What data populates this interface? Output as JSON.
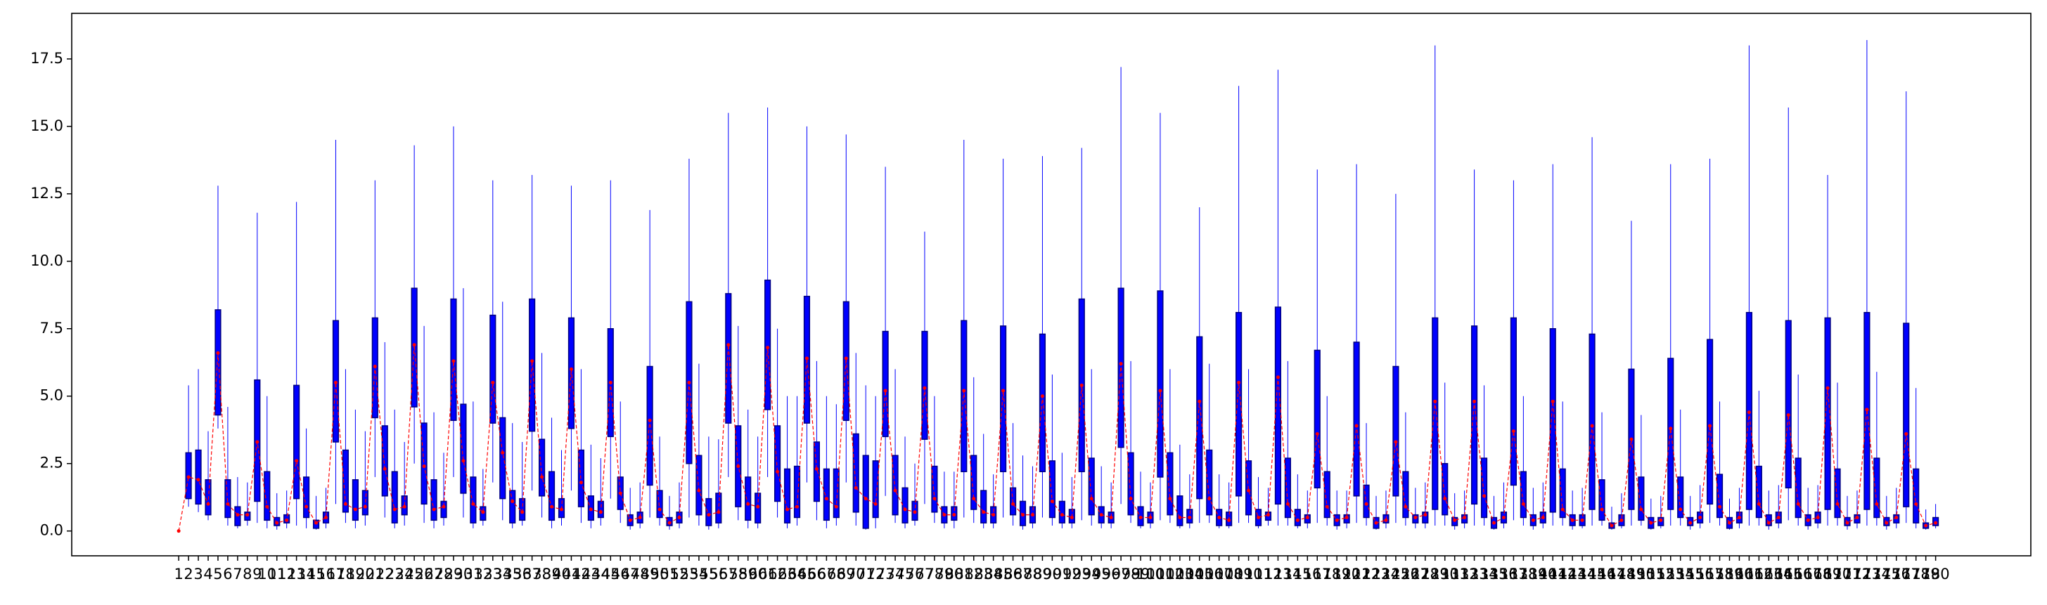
{
  "chart_data": {
    "type": "boxplot",
    "x": [
      1,
      2,
      3,
      4,
      5,
      6,
      7,
      8,
      9,
      10,
      11,
      12,
      13,
      14,
      15,
      16,
      17,
      18,
      19,
      20,
      21,
      22,
      23,
      24,
      25,
      26,
      27,
      28,
      29,
      30,
      31,
      32,
      33,
      34,
      35,
      36,
      37,
      38,
      39,
      40,
      41,
      42,
      43,
      44,
      45,
      46,
      47,
      48,
      49,
      50,
      51,
      52,
      53,
      54,
      55,
      56,
      57,
      58,
      59,
      60,
      61,
      62,
      63,
      64,
      65,
      66,
      67,
      68,
      69,
      70,
      71,
      72,
      73,
      74,
      75,
      76,
      77,
      78,
      79,
      80,
      81,
      82,
      83,
      84,
      85,
      86,
      87,
      88,
      89,
      90,
      91,
      92,
      93,
      94,
      95,
      96,
      97,
      98,
      99,
      100,
      101,
      102,
      103,
      104,
      105,
      106,
      107,
      108,
      109,
      110,
      111,
      112,
      113,
      114,
      115,
      116,
      117,
      118,
      119,
      120,
      121,
      122,
      123,
      124,
      125,
      126,
      127,
      128,
      129,
      130,
      131,
      132,
      133,
      134,
      135,
      136,
      137,
      138,
      139,
      140,
      141,
      142,
      143,
      144,
      145,
      146,
      147,
      148,
      149,
      150,
      151,
      152,
      153,
      154,
      155,
      156,
      157,
      158,
      159,
      160,
      161,
      162,
      163,
      164,
      165,
      166,
      167,
      168,
      169,
      170,
      171,
      172,
      173,
      174,
      175,
      176,
      177,
      178,
      179,
      180
    ],
    "boxes": [
      [
        0,
        0,
        0,
        0,
        0
      ],
      [
        0.9,
        1.2,
        2.0,
        2.9,
        5.4
      ],
      [
        0.7,
        1.0,
        1.9,
        3.0,
        6.0
      ],
      [
        0.4,
        0.6,
        1.0,
        1.9,
        3.7
      ],
      [
        3.8,
        4.3,
        6.6,
        8.2,
        12.8
      ],
      [
        0.2,
        0.5,
        1.0,
        1.9,
        4.6
      ],
      [
        0.1,
        0.2,
        0.6,
        0.9,
        2.0
      ],
      [
        0.2,
        0.4,
        0.6,
        0.7,
        1.8
      ],
      [
        0.3,
        1.1,
        3.3,
        5.6,
        11.8
      ],
      [
        0.1,
        0.4,
        0.9,
        2.2,
        5.0
      ],
      [
        0.05,
        0.2,
        0.3,
        0.5,
        1.4
      ],
      [
        0.1,
        0.3,
        0.4,
        0.6,
        1.5
      ],
      [
        0.2,
        1.2,
        2.6,
        5.4,
        12.2
      ],
      [
        0.1,
        0.5,
        0.9,
        2.0,
        3.8
      ],
      [
        0.05,
        0.1,
        0.3,
        0.4,
        1.3
      ],
      [
        0.1,
        0.3,
        0.5,
        0.7,
        1.6
      ],
      [
        1.0,
        3.3,
        5.5,
        7.8,
        14.5
      ],
      [
        0.3,
        0.7,
        1.0,
        3.0,
        6.0
      ],
      [
        0.1,
        0.4,
        0.8,
        1.9,
        4.5
      ],
      [
        0.2,
        0.6,
        0.9,
        1.5,
        3.7
      ],
      [
        2.0,
        4.2,
        6.1,
        7.9,
        13.0
      ],
      [
        0.5,
        1.3,
        2.3,
        3.9,
        7.0
      ],
      [
        0.1,
        0.3,
        0.8,
        2.2,
        4.5
      ],
      [
        0.2,
        0.6,
        0.9,
        1.3,
        3.3
      ],
      [
        2.5,
        4.6,
        6.9,
        9.0,
        14.3
      ],
      [
        0.3,
        1.0,
        2.4,
        4.0,
        7.6
      ],
      [
        0.1,
        0.4,
        0.8,
        1.9,
        4.4
      ],
      [
        0.2,
        0.5,
        0.9,
        1.1,
        2.9
      ],
      [
        2.0,
        4.1,
        6.3,
        8.6,
        15.0
      ],
      [
        0.5,
        1.4,
        2.6,
        4.7,
        9.0
      ],
      [
        0.1,
        0.3,
        1.0,
        2.0,
        4.8
      ],
      [
        0.2,
        0.4,
        0.7,
        0.9,
        2.3
      ],
      [
        1.8,
        4.0,
        5.5,
        8.0,
        13.0
      ],
      [
        0.4,
        1.2,
        2.9,
        4.2,
        8.5
      ],
      [
        0.1,
        0.3,
        1.1,
        1.5,
        4.0
      ],
      [
        0.2,
        0.4,
        0.7,
        1.2,
        3.3
      ],
      [
        1.5,
        3.7,
        6.3,
        8.6,
        13.2
      ],
      [
        0.5,
        1.3,
        2.0,
        3.4,
        6.6
      ],
      [
        0.1,
        0.4,
        0.9,
        2.2,
        4.2
      ],
      [
        0.2,
        0.5,
        0.8,
        1.2,
        3.0
      ],
      [
        1.5,
        3.8,
        6.0,
        7.9,
        12.8
      ],
      [
        0.3,
        0.9,
        1.8,
        3.0,
        6.0
      ],
      [
        0.1,
        0.4,
        0.8,
        1.3,
        3.2
      ],
      [
        0.2,
        0.5,
        0.7,
        1.1,
        2.7
      ],
      [
        1.2,
        3.5,
        5.5,
        7.5,
        13.0
      ],
      [
        0.3,
        0.8,
        1.4,
        2.0,
        4.8
      ],
      [
        0.05,
        0.2,
        0.4,
        0.6,
        1.6
      ],
      [
        0.1,
        0.3,
        0.5,
        0.7,
        1.8
      ],
      [
        0.5,
        1.7,
        4.1,
        6.1,
        11.9
      ],
      [
        0.2,
        0.5,
        0.8,
        1.5,
        3.5
      ],
      [
        0.05,
        0.2,
        0.3,
        0.5,
        1.3
      ],
      [
        0.1,
        0.3,
        0.5,
        0.7,
        1.8
      ],
      [
        0.5,
        2.5,
        5.5,
        8.5,
        13.8
      ],
      [
        0.2,
        0.6,
        1.5,
        2.8,
        6.2
      ],
      [
        0.05,
        0.2,
        0.6,
        1.2,
        3.5
      ],
      [
        0.1,
        0.3,
        0.7,
        1.4,
        3.4
      ],
      [
        2.0,
        4.0,
        6.9,
        8.8,
        15.5
      ],
      [
        0.4,
        0.9,
        2.4,
        3.9,
        7.6
      ],
      [
        0.1,
        0.4,
        1.0,
        2.0,
        4.5
      ],
      [
        0.1,
        0.3,
        0.9,
        1.4,
        3.5
      ],
      [
        2.0,
        4.5,
        6.8,
        9.3,
        15.7
      ],
      [
        0.5,
        1.1,
        2.2,
        3.9,
        7.5
      ],
      [
        0.1,
        0.3,
        0.8,
        2.3,
        5.0
      ],
      [
        0.2,
        0.5,
        0.9,
        2.4,
        5.0
      ],
      [
        1.8,
        4.0,
        6.4,
        8.7,
        15.0
      ],
      [
        0.4,
        1.1,
        2.3,
        3.3,
        6.3
      ],
      [
        0.1,
        0.4,
        1.2,
        2.3,
        5.0
      ],
      [
        0.2,
        0.5,
        0.9,
        2.3,
        4.7
      ],
      [
        1.8,
        4.1,
        6.4,
        8.5,
        14.7
      ],
      [
        0.2,
        0.7,
        1.6,
        3.6,
        6.6
      ],
      [
        0.05,
        0.1,
        1.2,
        2.8,
        5.4
      ],
      [
        0.1,
        0.5,
        1.0,
        2.6,
        5.0
      ],
      [
        1.3,
        3.5,
        5.2,
        7.4,
        13.5
      ],
      [
        0.3,
        0.6,
        1.5,
        2.8,
        6.0
      ],
      [
        0.1,
        0.3,
        0.8,
        1.6,
        3.5
      ],
      [
        0.2,
        0.4,
        0.7,
        1.1,
        2.5
      ],
      [
        1.0,
        3.4,
        5.3,
        7.4,
        11.1
      ],
      [
        0.3,
        0.7,
        1.2,
        2.4,
        5.0
      ],
      [
        0.1,
        0.3,
        0.6,
        0.9,
        2.2
      ],
      [
        0.1,
        0.4,
        0.6,
        0.9,
        2.2
      ],
      [
        0.5,
        2.2,
        5.2,
        7.8,
        14.5
      ],
      [
        0.3,
        0.8,
        1.2,
        2.8,
        5.7
      ],
      [
        0.1,
        0.3,
        0.7,
        1.5,
        3.6
      ],
      [
        0.1,
        0.3,
        0.6,
        0.9,
        2.1
      ],
      [
        0.5,
        2.2,
        5.2,
        7.6,
        13.8
      ],
      [
        0.2,
        0.6,
        1.0,
        1.6,
        4.0
      ],
      [
        0.05,
        0.2,
        0.6,
        1.1,
        2.8
      ],
      [
        0.1,
        0.3,
        0.6,
        0.9,
        2.4
      ],
      [
        0.5,
        2.2,
        5.0,
        7.3,
        13.9
      ],
      [
        0.2,
        0.5,
        1.1,
        2.6,
        5.8
      ],
      [
        0.1,
        0.3,
        0.6,
        1.1,
        2.9
      ],
      [
        0.1,
        0.3,
        0.5,
        0.8,
        2.0
      ],
      [
        0.4,
        2.2,
        5.4,
        8.6,
        14.2
      ],
      [
        0.2,
        0.6,
        1.2,
        2.7,
        6.0
      ],
      [
        0.1,
        0.3,
        0.6,
        0.9,
        2.4
      ],
      [
        0.1,
        0.3,
        0.5,
        0.7,
        1.8
      ],
      [
        1.0,
        3.1,
        6.2,
        9.0,
        17.2
      ],
      [
        0.3,
        0.6,
        1.2,
        2.9,
        6.3
      ],
      [
        0.1,
        0.2,
        0.5,
        0.9,
        2.2
      ],
      [
        0.1,
        0.3,
        0.5,
        0.7,
        1.8
      ],
      [
        0.4,
        2.0,
        5.2,
        8.9,
        15.5
      ],
      [
        0.3,
        0.6,
        1.2,
        2.9,
        6.0
      ],
      [
        0.1,
        0.2,
        0.5,
        1.3,
        3.2
      ],
      [
        0.1,
        0.3,
        0.5,
        0.8,
        2.1
      ],
      [
        0.3,
        1.2,
        4.8,
        7.2,
        12.0
      ],
      [
        0.3,
        0.6,
        1.2,
        3.0,
        6.2
      ],
      [
        0.1,
        0.2,
        0.5,
        0.8,
        2.1
      ],
      [
        0.1,
        0.2,
        0.4,
        0.7,
        1.8
      ],
      [
        0.3,
        1.3,
        5.5,
        8.1,
        16.5
      ],
      [
        0.3,
        0.6,
        1.5,
        2.6,
        6.0
      ],
      [
        0.1,
        0.2,
        0.5,
        0.8,
        2.0
      ],
      [
        0.2,
        0.4,
        0.6,
        0.7,
        1.6
      ],
      [
        0.2,
        1.0,
        5.7,
        8.3,
        17.1
      ],
      [
        0.2,
        0.5,
        1.0,
        2.7,
        6.3
      ],
      [
        0.1,
        0.2,
        0.4,
        0.8,
        2.1
      ],
      [
        0.1,
        0.3,
        0.5,
        0.6,
        1.5
      ],
      [
        0.3,
        1.6,
        3.6,
        6.7,
        13.4
      ],
      [
        0.2,
        0.5,
        0.9,
        2.2,
        5.0
      ],
      [
        0.05,
        0.2,
        0.4,
        0.6,
        1.5
      ],
      [
        0.1,
        0.3,
        0.5,
        0.6,
        1.5
      ],
      [
        0.3,
        1.3,
        3.9,
        7.0,
        13.6
      ],
      [
        0.2,
        0.5,
        1.0,
        1.7,
        4.0
      ],
      [
        0.05,
        0.1,
        0.3,
        0.5,
        1.3
      ],
      [
        0.1,
        0.3,
        0.4,
        0.6,
        1.5
      ],
      [
        0.3,
        1.3,
        3.3,
        6.1,
        12.5
      ],
      [
        0.2,
        0.5,
        0.9,
        2.2,
        4.4
      ],
      [
        0.1,
        0.3,
        0.5,
        0.6,
        1.6
      ],
      [
        0.1,
        0.3,
        0.6,
        0.7,
        1.8
      ],
      [
        0.2,
        0.8,
        4.8,
        7.9,
        18.0
      ],
      [
        0.2,
        0.6,
        1.2,
        2.5,
        5.5
      ],
      [
        0.05,
        0.2,
        0.4,
        0.5,
        1.4
      ],
      [
        0.1,
        0.3,
        0.5,
        0.6,
        1.5
      ],
      [
        0.2,
        1.0,
        4.8,
        7.6,
        13.4
      ],
      [
        0.2,
        0.5,
        1.3,
        2.7,
        5.4
      ],
      [
        0.05,
        0.1,
        0.3,
        0.5,
        1.3
      ],
      [
        0.1,
        0.3,
        0.5,
        0.7,
        1.8
      ],
      [
        0.4,
        1.7,
        3.7,
        7.9,
        13.0
      ],
      [
        0.2,
        0.5,
        1.0,
        2.2,
        5.0
      ],
      [
        0.05,
        0.2,
        0.4,
        0.6,
        1.6
      ],
      [
        0.1,
        0.3,
        0.5,
        0.7,
        1.8
      ],
      [
        0.2,
        0.7,
        4.8,
        7.5,
        13.6
      ],
      [
        0.2,
        0.5,
        0.8,
        2.3,
        4.8
      ],
      [
        0.05,
        0.2,
        0.4,
        0.6,
        1.5
      ],
      [
        0.1,
        0.2,
        0.4,
        0.6,
        1.6
      ],
      [
        0.2,
        0.8,
        3.9,
        7.3,
        14.6
      ],
      [
        0.2,
        0.4,
        0.8,
        1.9,
        4.4
      ],
      [
        0.05,
        0.1,
        0.2,
        0.3,
        0.9
      ],
      [
        0.1,
        0.2,
        0.4,
        0.6,
        1.4
      ],
      [
        0.2,
        0.8,
        3.4,
        6.0,
        11.5
      ],
      [
        0.2,
        0.4,
        0.8,
        2.0,
        4.3
      ],
      [
        0.05,
        0.1,
        0.3,
        0.5,
        1.2
      ],
      [
        0.1,
        0.2,
        0.4,
        0.5,
        1.3
      ],
      [
        0.2,
        0.8,
        3.8,
        6.4,
        13.6
      ],
      [
        0.2,
        0.5,
        0.8,
        2.0,
        4.5
      ],
      [
        0.05,
        0.2,
        0.3,
        0.5,
        1.3
      ],
      [
        0.1,
        0.3,
        0.5,
        0.7,
        1.7
      ],
      [
        0.3,
        1.0,
        3.9,
        7.1,
        13.8
      ],
      [
        0.2,
        0.5,
        0.9,
        2.1,
        4.8
      ],
      [
        0.05,
        0.1,
        0.3,
        0.5,
        1.2
      ],
      [
        0.1,
        0.3,
        0.5,
        0.7,
        1.6
      ],
      [
        0.2,
        0.8,
        4.4,
        8.1,
        18.0
      ],
      [
        0.2,
        0.5,
        1.0,
        2.4,
        5.2
      ],
      [
        0.05,
        0.2,
        0.3,
        0.6,
        1.5
      ],
      [
        0.1,
        0.3,
        0.5,
        0.7,
        1.7
      ],
      [
        0.4,
        1.6,
        4.3,
        7.8,
        15.7
      ],
      [
        0.2,
        0.5,
        1.0,
        2.7,
        5.8
      ],
      [
        0.05,
        0.2,
        0.4,
        0.6,
        1.6
      ],
      [
        0.1,
        0.3,
        0.5,
        0.7,
        1.7
      ],
      [
        0.2,
        0.8,
        5.3,
        7.9,
        13.2
      ],
      [
        0.2,
        0.5,
        1.0,
        2.3,
        5.5
      ],
      [
        0.05,
        0.2,
        0.3,
        0.5,
        1.3
      ],
      [
        0.1,
        0.3,
        0.5,
        0.6,
        1.5
      ],
      [
        0.2,
        0.8,
        4.5,
        8.1,
        18.2
      ],
      [
        0.2,
        0.5,
        1.0,
        2.7,
        5.9
      ],
      [
        0.05,
        0.2,
        0.3,
        0.5,
        1.3
      ],
      [
        0.1,
        0.3,
        0.5,
        0.6,
        1.6
      ],
      [
        0.3,
        0.9,
        3.6,
        7.7,
        16.3
      ],
      [
        0.1,
        0.3,
        1.0,
        2.3,
        5.3
      ],
      [
        0.05,
        0.1,
        0.2,
        0.3,
        0.8
      ],
      [
        0.1,
        0.2,
        0.3,
        0.5,
        1.0
      ]
    ],
    "color": "#0000ff",
    "edge_color": "#000080",
    "median_color": "#ff0000",
    "xlim": [
      -9.9,
      189.7
    ],
    "ylim": [
      -0.92,
      19.19
    ],
    "yticks": [
      {
        "value": 0,
        "label": "0.0"
      },
      {
        "value": 2.5,
        "label": "2.5"
      },
      {
        "value": 5,
        "label": "5.0"
      },
      {
        "value": 7.5,
        "label": "7.5"
      },
      {
        "value": 10,
        "label": "10.0"
      },
      {
        "value": 12.5,
        "label": "12.5"
      },
      {
        "value": 15,
        "label": "15.0"
      },
      {
        "value": 17.5,
        "label": "17.5"
      }
    ]
  }
}
